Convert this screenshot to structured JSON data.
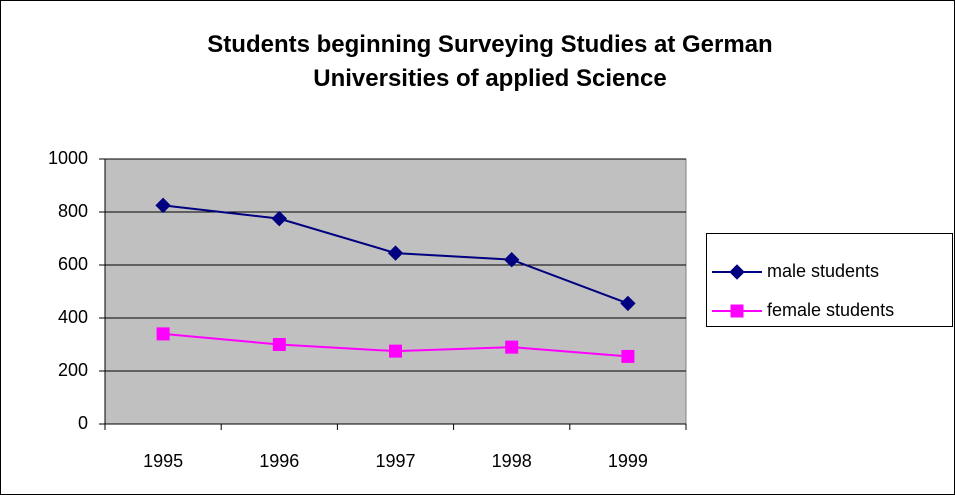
{
  "chart_data": {
    "type": "line",
    "title": "Students beginning Surveying Studies at German Universities of applied Science",
    "categories": [
      "1995",
      "1996",
      "1997",
      "1998",
      "1999"
    ],
    "series": [
      {
        "name": "male students",
        "color": "#000080",
        "marker": "diamond",
        "values": [
          825,
          775,
          645,
          620,
          455
        ]
      },
      {
        "name": "female students",
        "color": "#ff00ff",
        "marker": "square",
        "values": [
          340,
          300,
          275,
          290,
          255
        ]
      }
    ],
    "ylim": [
      0,
      1000
    ],
    "yticks": [
      0,
      200,
      400,
      600,
      800,
      1000
    ],
    "grid": true,
    "legend": "right"
  }
}
